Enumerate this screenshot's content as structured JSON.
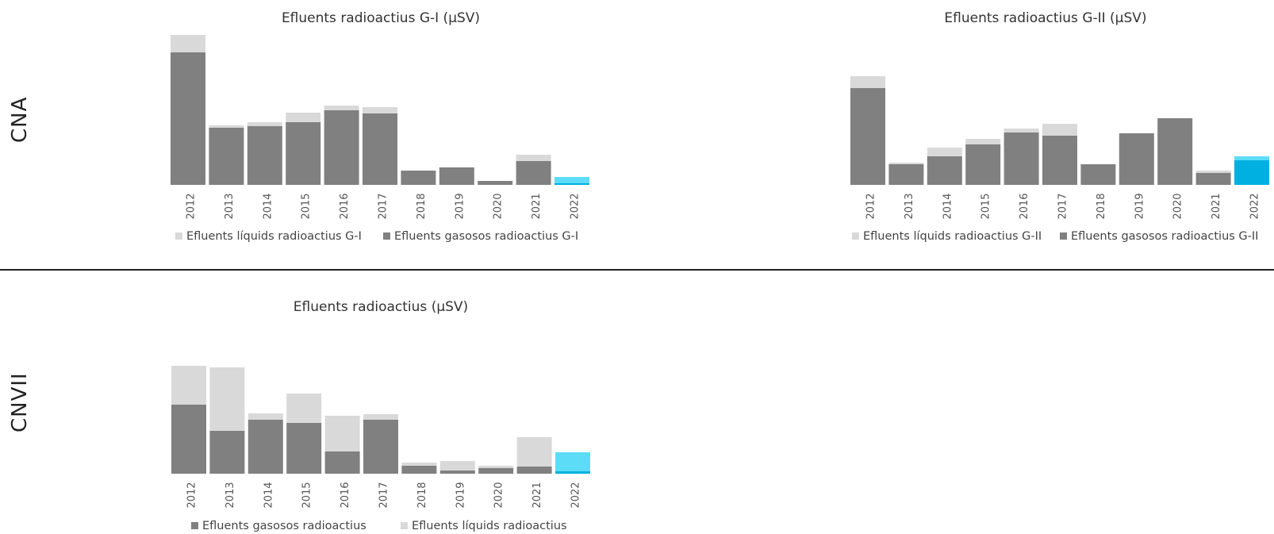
{
  "rows": [
    {
      "label": "CNA"
    },
    {
      "label": "CNVII"
    }
  ],
  "colors": {
    "gasosos": "#808080",
    "liquids": "#d9d9d9",
    "highlight_gasosos": "#00b0e0",
    "highlight_liquids": "#5ddcf8"
  },
  "chart_data": [
    {
      "type": "bar",
      "stacked": true,
      "title": "Efluents radioactius G-I (µSV)",
      "categories": [
        "2012",
        "2013",
        "2014",
        "2015",
        "2016",
        "2017",
        "2018",
        "2019",
        "2020",
        "2021",
        "2022"
      ],
      "series": [
        {
          "name": "Efluents gasosos radioactius G-I",
          "role": "gasosos",
          "values": [
            167,
            72,
            74,
            79,
            94,
            90,
            18,
            22,
            5,
            30,
            2
          ]
        },
        {
          "name": "Efluents líquids radioactius G-I",
          "role": "liquids",
          "values": [
            22,
            3,
            5,
            12,
            6,
            8,
            0,
            0,
            0,
            8,
            8
          ]
        }
      ],
      "legend_order": [
        "liquids",
        "gasosos"
      ],
      "highlight_category": "2022",
      "ylim": [
        0,
        189
      ],
      "grid": false,
      "legend": "bottom"
    },
    {
      "type": "bar",
      "stacked": true,
      "title": "Efluents radioactius G-II (µSV)",
      "categories": [
        "2012",
        "2013",
        "2014",
        "2015",
        "2016",
        "2017",
        "2018",
        "2019",
        "2020",
        "2021",
        "2022"
      ],
      "series": [
        {
          "name": "Efluents gasosos radioactius G-II",
          "role": "gasosos",
          "values": [
            122,
            26,
            36,
            51,
            66,
            62,
            26,
            65,
            84,
            15,
            31
          ]
        },
        {
          "name": "Efluents líquids radioactius G-II",
          "role": "liquids",
          "values": [
            15,
            2,
            11,
            7,
            5,
            15,
            0,
            0,
            0,
            3,
            5
          ]
        }
      ],
      "legend_order": [
        "liquids",
        "gasosos"
      ],
      "highlight_category": "2022",
      "ylim": [
        0,
        137
      ],
      "grid": false,
      "legend": "bottom"
    },
    {
      "type": "bar",
      "stacked": true,
      "title": "Efluents radioactius (µSV)",
      "categories": [
        "2012",
        "2013",
        "2014",
        "2015",
        "2016",
        "2017",
        "2018",
        "2019",
        "2020",
        "2021",
        "2022"
      ],
      "series": [
        {
          "name": "Efluents gasosos radioactius",
          "role": "gasosos",
          "values": [
            87,
            54,
            68,
            64,
            28,
            68,
            10,
            4,
            7,
            9,
            3
          ]
        },
        {
          "name": "Efluents líquids radioactius",
          "role": "liquids",
          "values": [
            49,
            80,
            8,
            37,
            45,
            7,
            4,
            12,
            3,
            37,
            24
          ]
        }
      ],
      "legend_order": [
        "gasosos",
        "liquids"
      ],
      "highlight_category": "2022",
      "ylim": [
        0,
        136
      ],
      "grid": false,
      "legend": "bottom"
    }
  ]
}
